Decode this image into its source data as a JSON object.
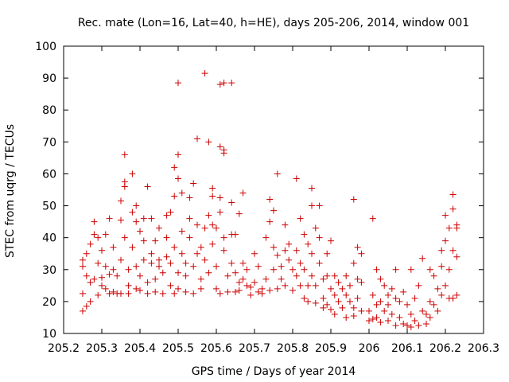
{
  "chart_data": {
    "type": "scatter",
    "title": "Rec. mate (Lon=16, Lat=40, h=HE), days 205-206, 2014, window 001",
    "xlabel": "GPS time / Days of year 2014",
    "ylabel": "STEC from uqrg / TECUs",
    "xlim": [
      205.2,
      206.3
    ],
    "ylim": [
      10,
      100
    ],
    "xticks": [
      205.2,
      205.3,
      205.4,
      205.5,
      205.6,
      205.7,
      205.8,
      205.9,
      206,
      206.1,
      206.2,
      206.3
    ],
    "xtick_labels": [
      "205.2",
      "205.3",
      "205.4",
      "205.5",
      "205.6",
      "205.7",
      "205.8",
      "205.9",
      "206",
      "206.1",
      "206.2",
      "206.3"
    ],
    "yticks": [
      10,
      20,
      30,
      40,
      50,
      60,
      70,
      80,
      90,
      100
    ],
    "ytick_labels": [
      "10",
      "20",
      "30",
      "40",
      "50",
      "60",
      "70",
      "80",
      "90",
      "100"
    ],
    "grid": false,
    "marker": "plus",
    "color": "#cc0000",
    "points": [
      [
        205.25,
        17
      ],
      [
        205.25,
        22.5
      ],
      [
        205.25,
        31
      ],
      [
        205.25,
        33
      ],
      [
        205.26,
        18.5
      ],
      [
        205.26,
        28
      ],
      [
        205.26,
        35
      ],
      [
        205.27,
        20
      ],
      [
        205.27,
        26
      ],
      [
        205.27,
        38
      ],
      [
        205.28,
        45
      ],
      [
        205.28,
        41
      ],
      [
        205.28,
        27
      ],
      [
        205.29,
        22
      ],
      [
        205.29,
        32
      ],
      [
        205.29,
        40
      ],
      [
        205.3,
        25
      ],
      [
        205.3,
        36
      ],
      [
        205.3,
        27.5
      ],
      [
        205.31,
        41
      ],
      [
        205.31,
        31
      ],
      [
        205.31,
        24
      ],
      [
        205.32,
        22.5
      ],
      [
        205.32,
        28.5
      ],
      [
        205.32,
        46
      ],
      [
        205.33,
        23
      ],
      [
        205.33,
        30
      ],
      [
        205.33,
        37
      ],
      [
        205.34,
        22.5
      ],
      [
        205.34,
        28
      ],
      [
        205.35,
        45.5
      ],
      [
        205.35,
        51.5
      ],
      [
        205.35,
        33
      ],
      [
        205.35,
        22.5
      ],
      [
        205.36,
        56
      ],
      [
        205.36,
        57.5
      ],
      [
        205.36,
        66
      ],
      [
        205.36,
        40
      ],
      [
        205.37,
        30
      ],
      [
        205.37,
        25
      ],
      [
        205.37,
        22.5
      ],
      [
        205.38,
        60
      ],
      [
        205.38,
        48
      ],
      [
        205.38,
        37
      ],
      [
        205.39,
        24
      ],
      [
        205.39,
        31
      ],
      [
        205.39,
        50
      ],
      [
        205.39,
        45
      ],
      [
        205.4,
        42
      ],
      [
        205.4,
        28
      ],
      [
        205.4,
        23.5
      ],
      [
        205.41,
        39
      ],
      [
        205.41,
        46
      ],
      [
        205.41,
        33
      ],
      [
        205.42,
        26
      ],
      [
        205.42,
        22.5
      ],
      [
        205.42,
        56
      ],
      [
        205.43,
        35
      ],
      [
        205.43,
        46
      ],
      [
        205.43,
        32
      ],
      [
        205.44,
        27
      ],
      [
        205.44,
        23
      ],
      [
        205.44,
        39
      ],
      [
        205.45,
        33
      ],
      [
        205.45,
        43
      ],
      [
        205.45,
        31
      ],
      [
        205.46,
        29
      ],
      [
        205.46,
        22.5
      ],
      [
        205.47,
        40
      ],
      [
        205.47,
        47
      ],
      [
        205.47,
        34
      ],
      [
        205.48,
        25
      ],
      [
        205.48,
        32
      ],
      [
        205.48,
        48
      ],
      [
        205.49,
        62
      ],
      [
        205.49,
        53
      ],
      [
        205.49,
        37
      ],
      [
        205.49,
        22.5
      ],
      [
        205.5,
        88.5
      ],
      [
        205.5,
        66
      ],
      [
        205.5,
        58.5
      ],
      [
        205.5,
        29
      ],
      [
        205.5,
        24
      ],
      [
        205.51,
        42
      ],
      [
        205.51,
        35
      ],
      [
        205.51,
        54
      ],
      [
        205.52,
        32
      ],
      [
        205.52,
        28
      ],
      [
        205.52,
        23
      ],
      [
        205.53,
        46
      ],
      [
        205.53,
        40
      ],
      [
        205.53,
        52.5
      ],
      [
        205.54,
        57
      ],
      [
        205.54,
        31
      ],
      [
        205.54,
        22.5
      ],
      [
        205.55,
        35
      ],
      [
        205.55,
        44
      ],
      [
        205.55,
        71
      ],
      [
        205.56,
        27
      ],
      [
        205.56,
        37
      ],
      [
        205.56,
        24
      ],
      [
        205.57,
        91.5
      ],
      [
        205.57,
        43
      ],
      [
        205.57,
        33
      ],
      [
        205.58,
        70
      ],
      [
        205.58,
        47
      ],
      [
        205.58,
        29
      ],
      [
        205.59,
        44
      ],
      [
        205.59,
        55.5
      ],
      [
        205.59,
        53
      ],
      [
        205.59,
        38
      ],
      [
        205.6,
        43
      ],
      [
        205.6,
        31
      ],
      [
        205.6,
        24
      ],
      [
        205.61,
        88
      ],
      [
        205.61,
        68.5
      ],
      [
        205.61,
        52.5
      ],
      [
        205.61,
        48
      ],
      [
        205.61,
        22.5
      ],
      [
        205.62,
        88.5
      ],
      [
        205.62,
        66.5
      ],
      [
        205.62,
        67.5
      ],
      [
        205.62,
        36
      ],
      [
        205.62,
        40
      ],
      [
        205.63,
        28
      ],
      [
        205.63,
        23
      ],
      [
        205.64,
        88.5
      ],
      [
        205.64,
        51
      ],
      [
        205.64,
        41
      ],
      [
        205.64,
        32
      ],
      [
        205.65,
        29
      ],
      [
        205.65,
        23
      ],
      [
        205.65,
        41
      ],
      [
        205.66,
        47.5
      ],
      [
        205.66,
        26
      ],
      [
        205.66,
        23.5
      ],
      [
        205.67,
        54
      ],
      [
        205.67,
        32
      ],
      [
        205.67,
        27
      ],
      [
        205.68,
        25
      ],
      [
        205.68,
        30
      ],
      [
        205.69,
        24.5
      ],
      [
        205.69,
        22
      ],
      [
        205.7,
        35
      ],
      [
        205.7,
        26
      ],
      [
        205.71,
        23
      ],
      [
        205.71,
        31
      ],
      [
        205.72,
        24
      ],
      [
        205.72,
        22.5
      ],
      [
        205.73,
        27
      ],
      [
        205.73,
        40
      ],
      [
        205.74,
        52
      ],
      [
        205.74,
        45
      ],
      [
        205.74,
        23.5
      ],
      [
        205.75,
        48.5
      ],
      [
        205.75,
        37
      ],
      [
        205.75,
        30
      ],
      [
        205.76,
        60
      ],
      [
        205.76,
        34.5
      ],
      [
        205.76,
        24
      ],
      [
        205.77,
        31
      ],
      [
        205.77,
        27
      ],
      [
        205.78,
        36
      ],
      [
        205.78,
        44
      ],
      [
        205.78,
        25
      ],
      [
        205.79,
        33
      ],
      [
        205.79,
        38
      ],
      [
        205.8,
        30
      ],
      [
        205.8,
        23.5
      ],
      [
        205.81,
        58.5
      ],
      [
        205.81,
        36
      ],
      [
        205.81,
        28
      ],
      [
        205.82,
        46
      ],
      [
        205.82,
        32
      ],
      [
        205.82,
        25
      ],
      [
        205.83,
        41
      ],
      [
        205.83,
        30
      ],
      [
        205.83,
        21
      ],
      [
        205.84,
        38
      ],
      [
        205.84,
        25
      ],
      [
        205.84,
        20
      ],
      [
        205.85,
        55.5
      ],
      [
        205.85,
        50
      ],
      [
        205.85,
        35
      ],
      [
        205.85,
        28
      ],
      [
        205.86,
        43
      ],
      [
        205.86,
        25
      ],
      [
        205.86,
        19.5
      ],
      [
        205.87,
        50
      ],
      [
        205.87,
        40
      ],
      [
        205.87,
        32
      ],
      [
        205.88,
        27
      ],
      [
        205.88,
        21
      ],
      [
        205.88,
        18
      ],
      [
        205.89,
        35
      ],
      [
        205.89,
        28
      ],
      [
        205.89,
        19
      ],
      [
        205.9,
        39
      ],
      [
        205.9,
        24
      ],
      [
        205.9,
        17.5
      ],
      [
        205.91,
        28
      ],
      [
        205.91,
        22
      ],
      [
        205.91,
        16
      ],
      [
        205.92,
        26
      ],
      [
        205.92,
        20
      ],
      [
        205.93,
        24
      ],
      [
        205.93,
        18
      ],
      [
        205.94,
        28
      ],
      [
        205.94,
        22
      ],
      [
        205.94,
        15
      ],
      [
        205.95,
        25
      ],
      [
        205.95,
        20
      ],
      [
        205.96,
        32
      ],
      [
        205.96,
        52
      ],
      [
        205.96,
        18
      ],
      [
        205.96,
        15.5
      ],
      [
        205.97,
        27
      ],
      [
        205.97,
        37
      ],
      [
        205.97,
        21
      ],
      [
        205.98,
        35
      ],
      [
        205.98,
        26
      ],
      [
        205.98,
        17
      ],
      [
        206.0,
        17
      ],
      [
        206.0,
        14
      ],
      [
        206.01,
        46
      ],
      [
        206.01,
        22
      ],
      [
        206.01,
        14.5
      ],
      [
        206.02,
        30
      ],
      [
        206.02,
        19
      ],
      [
        206.02,
        15
      ],
      [
        206.03,
        27
      ],
      [
        206.03,
        20
      ],
      [
        206.03,
        13.5
      ],
      [
        206.04,
        25
      ],
      [
        206.04,
        17
      ],
      [
        206.05,
        22
      ],
      [
        206.05,
        19
      ],
      [
        206.05,
        14
      ],
      [
        206.06,
        24
      ],
      [
        206.06,
        16
      ],
      [
        206.07,
        21
      ],
      [
        206.07,
        30
      ],
      [
        206.07,
        12.5
      ],
      [
        206.08,
        20
      ],
      [
        206.08,
        15
      ],
      [
        206.09,
        23
      ],
      [
        206.09,
        13
      ],
      [
        206.1,
        19
      ],
      [
        206.1,
        12.5
      ],
      [
        206.11,
        30
      ],
      [
        206.11,
        16
      ],
      [
        206.11,
        12
      ],
      [
        206.12,
        21
      ],
      [
        206.12,
        14
      ],
      [
        206.13,
        25
      ],
      [
        206.13,
        12.5
      ],
      [
        206.14,
        33.5
      ],
      [
        206.14,
        17
      ],
      [
        206.15,
        16
      ],
      [
        206.15,
        13
      ],
      [
        206.16,
        30
      ],
      [
        206.16,
        20
      ],
      [
        206.16,
        15
      ],
      [
        206.17,
        28
      ],
      [
        206.17,
        19
      ],
      [
        206.18,
        24
      ],
      [
        206.18,
        17
      ],
      [
        206.19,
        36
      ],
      [
        206.19,
        31
      ],
      [
        206.19,
        22
      ],
      [
        206.2,
        47
      ],
      [
        206.2,
        39
      ],
      [
        206.2,
        25
      ],
      [
        206.21,
        43
      ],
      [
        206.21,
        30
      ],
      [
        206.21,
        21
      ],
      [
        206.22,
        53.5
      ],
      [
        206.22,
        49
      ],
      [
        206.22,
        36
      ],
      [
        206.22,
        21
      ],
      [
        206.23,
        44
      ],
      [
        206.23,
        43
      ],
      [
        206.23,
        34
      ],
      [
        206.23,
        22
      ]
    ]
  }
}
